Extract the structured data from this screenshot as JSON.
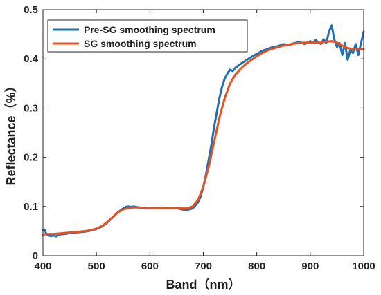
{
  "chart_data": {
    "type": "line",
    "title": "",
    "xlabel": "Band（nm）",
    "ylabel": "Reflectance（%）",
    "xlim": [
      400,
      1000
    ],
    "ylim": [
      0,
      0.5
    ],
    "xticks": [
      "400",
      "500",
      "600",
      "700",
      "800",
      "900",
      "1000"
    ],
    "yticks": [
      "0",
      "0.1",
      "0.2",
      "0.3",
      "0.4",
      "0.5"
    ],
    "grid": false,
    "legend_position": "top-left",
    "series": [
      {
        "name": "Pre-SG smoothing spectrum",
        "color": "#1f6fb5",
        "x": [
          400,
          403,
          406,
          410,
          415,
          420,
          425,
          430,
          440,
          450,
          460,
          470,
          480,
          490,
          500,
          510,
          520,
          530,
          540,
          550,
          555,
          560,
          565,
          570,
          580,
          590,
          600,
          610,
          620,
          630,
          640,
          650,
          660,
          670,
          680,
          690,
          695,
          700,
          705,
          710,
          715,
          720,
          725,
          730,
          735,
          740,
          745,
          750,
          755,
          760,
          770,
          780,
          790,
          800,
          810,
          820,
          830,
          840,
          850,
          860,
          870,
          880,
          890,
          900,
          905,
          910,
          915,
          920,
          925,
          930,
          935,
          940,
          945,
          950,
          955,
          960,
          965,
          970,
          975,
          980,
          985,
          990,
          995,
          1000
        ],
        "y": [
          0.052,
          0.053,
          0.045,
          0.041,
          0.04,
          0.041,
          0.039,
          0.043,
          0.044,
          0.046,
          0.047,
          0.048,
          0.049,
          0.051,
          0.054,
          0.059,
          0.067,
          0.077,
          0.088,
          0.096,
          0.099,
          0.1,
          0.099,
          0.1,
          0.098,
          0.096,
          0.097,
          0.097,
          0.098,
          0.097,
          0.097,
          0.097,
          0.094,
          0.093,
          0.096,
          0.108,
          0.12,
          0.14,
          0.165,
          0.195,
          0.225,
          0.26,
          0.29,
          0.32,
          0.343,
          0.36,
          0.37,
          0.378,
          0.375,
          0.382,
          0.39,
          0.397,
          0.404,
          0.41,
          0.416,
          0.42,
          0.424,
          0.426,
          0.43,
          0.428,
          0.432,
          0.434,
          0.43,
          0.436,
          0.432,
          0.438,
          0.434,
          0.43,
          0.44,
          0.432,
          0.455,
          0.468,
          0.44,
          0.424,
          0.432,
          0.408,
          0.432,
          0.398,
          0.418,
          0.412,
          0.43,
          0.408,
          0.432,
          0.455
        ]
      },
      {
        "name": "SG smoothing spectrum",
        "color": "#e8501e",
        "x": [
          400,
          410,
          420,
          430,
          440,
          450,
          460,
          470,
          480,
          490,
          500,
          510,
          520,
          530,
          540,
          550,
          560,
          570,
          580,
          590,
          600,
          610,
          620,
          630,
          640,
          650,
          660,
          670,
          680,
          690,
          700,
          710,
          720,
          730,
          740,
          750,
          760,
          770,
          780,
          790,
          800,
          810,
          820,
          830,
          840,
          850,
          860,
          870,
          880,
          890,
          900,
          910,
          920,
          930,
          940,
          950,
          960,
          970,
          980,
          990,
          1000
        ],
        "y": [
          0.043,
          0.044,
          0.044,
          0.045,
          0.046,
          0.047,
          0.048,
          0.049,
          0.05,
          0.052,
          0.055,
          0.06,
          0.068,
          0.078,
          0.088,
          0.094,
          0.097,
          0.098,
          0.098,
          0.097,
          0.097,
          0.097,
          0.097,
          0.097,
          0.097,
          0.097,
          0.096,
          0.096,
          0.1,
          0.113,
          0.14,
          0.18,
          0.23,
          0.28,
          0.32,
          0.35,
          0.368,
          0.38,
          0.39,
          0.398,
          0.405,
          0.412,
          0.417,
          0.421,
          0.424,
          0.427,
          0.429,
          0.431,
          0.432,
          0.433,
          0.433,
          0.433,
          0.433,
          0.435,
          0.436,
          0.433,
          0.427,
          0.422,
          0.42,
          0.42,
          0.42
        ]
      }
    ]
  }
}
